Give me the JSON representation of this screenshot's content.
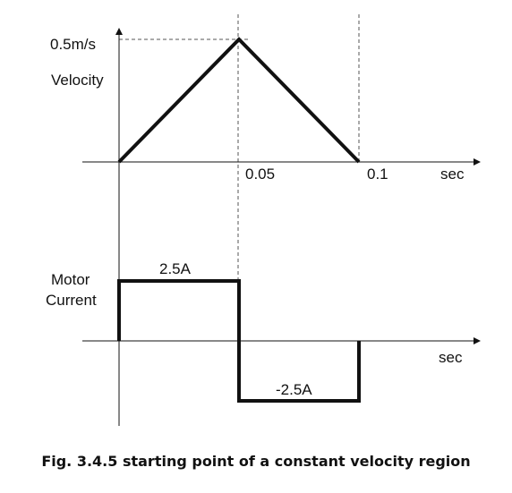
{
  "velocity": {
    "peak_label": "0.5m/s",
    "axis_label": "Velocity",
    "tick_mid": "0.05",
    "tick_end": "0.1",
    "time_unit": "sec",
    "points": [
      [
        0,
        0
      ],
      [
        0.05,
        0.5
      ],
      [
        0.1,
        0
      ]
    ]
  },
  "current": {
    "axis_label_line1": "Motor",
    "axis_label_line2": "Current",
    "positive_label": "2.5A",
    "negative_label": "-2.5A",
    "time_unit": "sec",
    "levels": [
      {
        "t0": 0,
        "t1": 0.05,
        "value": 2.5
      },
      {
        "t0": 0.05,
        "t1": 0.1,
        "value": -2.5
      }
    ]
  },
  "caption": "Fig. 3.4.5 starting point of a constant velocity region"
}
